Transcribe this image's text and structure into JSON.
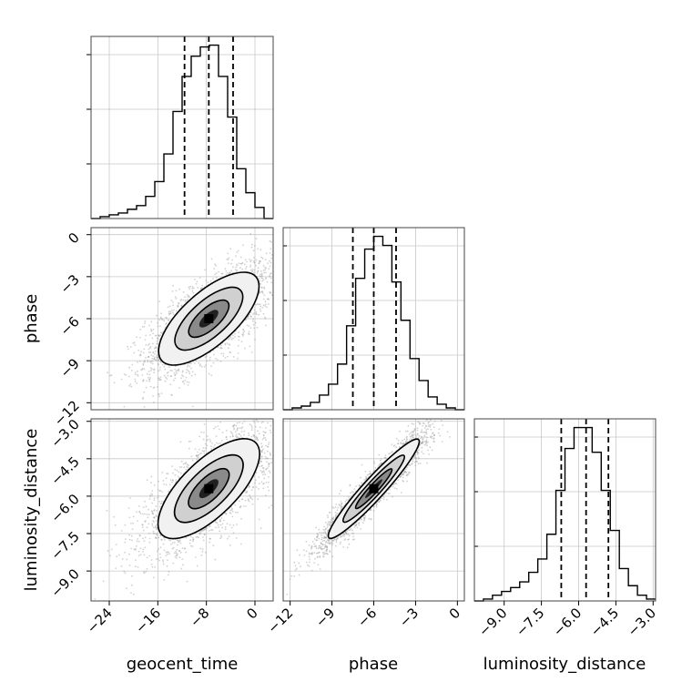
{
  "chart_data": {
    "type": "scatter",
    "subtype": "corner-plot",
    "parameters": [
      "geocent_time",
      "phase",
      "luminosity_distance"
    ],
    "axis_labels": {
      "geocent_time": "geocent_time",
      "phase": "phase",
      "luminosity_distance": "luminosity_distance"
    },
    "ranges": {
      "geocent_time": [
        -27,
        3
      ],
      "phase": [
        -12.5,
        0.5
      ],
      "luminosity_distance": [
        -10.2,
        -2.9
      ]
    },
    "ticks": {
      "geocent_time": [
        -24,
        -16,
        -8,
        0
      ],
      "phase": [
        -12,
        -9,
        -6,
        -3,
        0
      ],
      "luminosity_distance": [
        -9.0,
        -7.5,
        -6.0,
        -4.5,
        -3.0
      ]
    },
    "tick_labels": {
      "geocent_time": [
        "−24",
        "−16",
        "−8",
        "0"
      ],
      "phase": [
        "−12",
        "−9",
        "−6",
        "−3",
        "0"
      ],
      "luminosity_distance": [
        "−9.0",
        "−7.5",
        "−6.0",
        "−4.5",
        "−3.0"
      ]
    },
    "quantiles": {
      "geocent_time": [
        -11.6,
        -7.6,
        -3.6
      ],
      "phase": [
        -7.5,
        -6.0,
        -4.4
      ],
      "luminosity_distance": [
        -6.7,
        -5.7,
        -4.8
      ]
    },
    "histograms": {
      "geocent_time": {
        "edges": [
          -27.0,
          -25.5,
          -24.0,
          -22.5,
          -21.0,
          -19.5,
          -18.0,
          -16.5,
          -15.0,
          -13.5,
          -12.0,
          -10.5,
          -9.0,
          -7.5,
          -6.0,
          -4.5,
          -3.0,
          -1.5,
          0.0,
          1.5,
          3.0
        ],
        "counts": [
          0,
          1,
          2,
          3,
          5,
          7,
          12,
          20,
          35,
          58,
          77,
          88,
          93,
          94,
          77,
          55,
          27,
          14,
          6,
          0
        ]
      },
      "phase": {
        "edges": [
          -12.5,
          -11.85,
          -11.2,
          -10.55,
          -9.9,
          -9.25,
          -8.6,
          -7.95,
          -7.3,
          -6.65,
          -6.0,
          -5.35,
          -4.7,
          -4.05,
          -3.4,
          -2.75,
          -2.1,
          -1.45,
          -0.8,
          -0.15,
          0.5
        ],
        "counts": [
          0,
          1,
          2,
          4,
          8,
          14,
          25,
          46,
          72,
          88,
          95,
          90,
          70,
          49,
          28,
          16,
          7,
          3,
          1,
          0
        ]
      },
      "luminosity_distance": {
        "edges": [
          -10.2,
          -9.835,
          -9.47,
          -9.105,
          -8.74,
          -8.375,
          -8.01,
          -7.645,
          -7.28,
          -6.915,
          -6.55,
          -6.185,
          -5.82,
          -5.455,
          -5.09,
          -4.725,
          -4.36,
          -3.995,
          -3.63,
          -3.265,
          -2.9
        ],
        "counts": [
          0,
          1,
          3,
          5,
          7,
          10,
          15,
          22,
          35,
          58,
          80,
          91,
          91,
          78,
          58,
          37,
          17,
          8,
          3,
          1
        ]
      }
    },
    "correlations": {
      "phase_vs_geocent_time": 0.7,
      "luminosity_distance_vs_geocent_time": 0.7,
      "luminosity_distance_vs_phase": 0.95
    },
    "grid": true,
    "colors": {
      "line": "#000000",
      "scatter": "#9a9a9a",
      "grid": "#c8c8c8",
      "quantile": "#000000"
    }
  }
}
